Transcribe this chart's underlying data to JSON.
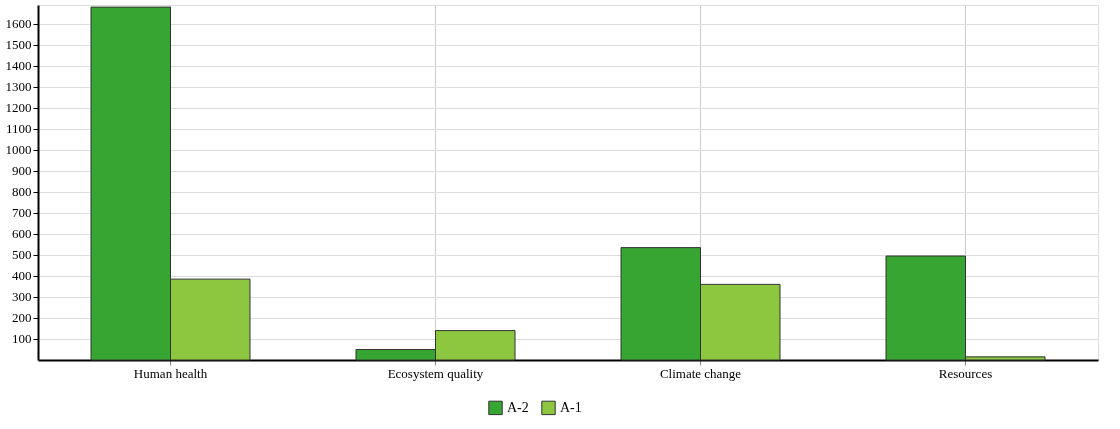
{
  "chart_data": {
    "type": "bar",
    "categories": [
      "Human health",
      "Ecosystem quality",
      "Climate change",
      "Resources"
    ],
    "series": [
      {
        "name": "A-2",
        "color": "#36a532",
        "values": [
          1680,
          50,
          535,
          495
        ]
      },
      {
        "name": "A-1",
        "color": "#8dc63f",
        "values": [
          385,
          140,
          360,
          15
        ]
      }
    ],
    "ylim": [
      0,
      1690
    ],
    "yticks": [
      100,
      200,
      300,
      400,
      500,
      600,
      700,
      800,
      900,
      1000,
      1100,
      1200,
      1300,
      1400,
      1500,
      1600
    ],
    "grid": true,
    "legend": "bottom"
  }
}
